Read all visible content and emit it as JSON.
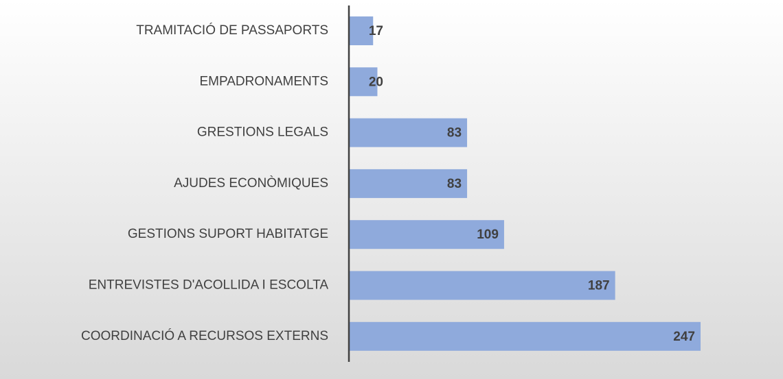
{
  "chart_data": {
    "type": "barh",
    "categories": [
      "TRAMITACIÓ DE PASSAPORTS",
      "EMPADRONAMENTS",
      "GRESTIONS LEGALS",
      "AJUDES ECONÒMIQUES",
      "GESTIONS SUPORT HABITATGE",
      "ENTREVISTES D'ACOLLIDA I ESCOLTA",
      "COORDINACIÓ A RECURSOS EXTERNS"
    ],
    "values": [
      17,
      20,
      83,
      83,
      109,
      187,
      247
    ],
    "color": "#8faadc"
  }
}
